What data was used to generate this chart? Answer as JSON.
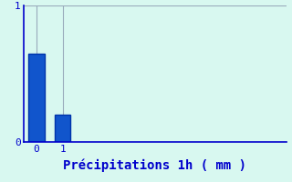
{
  "categories": [
    0,
    1
  ],
  "values": [
    0.65,
    0.2
  ],
  "bar_color": "#1155cc",
  "bar_edge_color": "#0033aa",
  "background_color": "#d8f8f0",
  "axes_background_color": "#d8f8f0",
  "xlabel": "Précipitations 1h ( mm )",
  "xlabel_color": "#0000cc",
  "xlabel_fontsize": 10,
  "ylim": [
    0,
    1.0
  ],
  "xlim": [
    -0.5,
    9.5
  ],
  "yticks": [
    0,
    1
  ],
  "xticks": [
    0,
    1
  ],
  "grid_color": "#99aabb",
  "axis_color": "#0000cc",
  "tick_color": "#0000cc",
  "tick_fontsize": 8,
  "bar_width": 0.6
}
